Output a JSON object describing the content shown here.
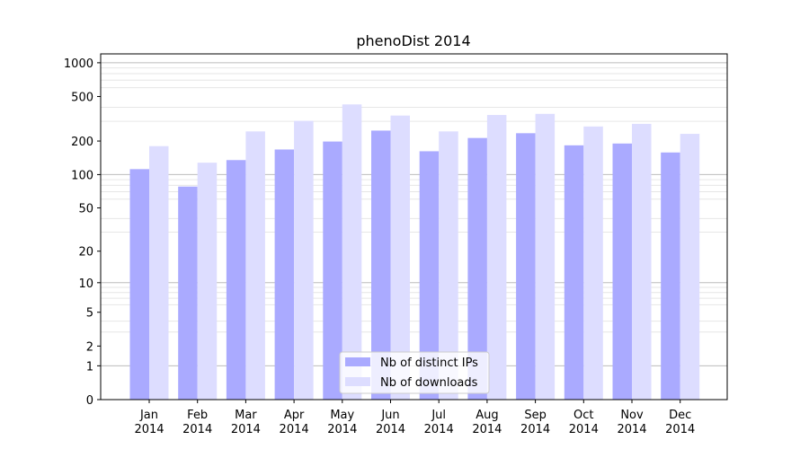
{
  "chart_data": {
    "type": "bar",
    "title": "phenoDist 2014",
    "xlabel": "",
    "ylabel": "",
    "yscale": "log(1+y)",
    "ylim": [
      0,
      1200
    ],
    "yticks": [
      0,
      1,
      2,
      5,
      10,
      20,
      50,
      100,
      200,
      500,
      1000
    ],
    "grid": true,
    "legend_position": "bottom-center",
    "categories": [
      "Jan\n2014",
      "Feb\n2014",
      "Mar\n2014",
      "Apr\n2014",
      "May\n2014",
      "Jun\n2014",
      "Jul\n2014",
      "Aug\n2014",
      "Sep\n2014",
      "Oct\n2014",
      "Nov\n2014",
      "Dec\n2014"
    ],
    "series": [
      {
        "name": "Nb of distinct IPs",
        "color": "#aaaaff",
        "values": [
          112,
          78,
          135,
          168,
          198,
          248,
          162,
          213,
          235,
          183,
          190,
          158
        ]
      },
      {
        "name": "Nb of downloads",
        "color": "#ddddff",
        "values": [
          180,
          128,
          244,
          303,
          425,
          338,
          244,
          342,
          350,
          270,
          285,
          232
        ]
      }
    ]
  }
}
